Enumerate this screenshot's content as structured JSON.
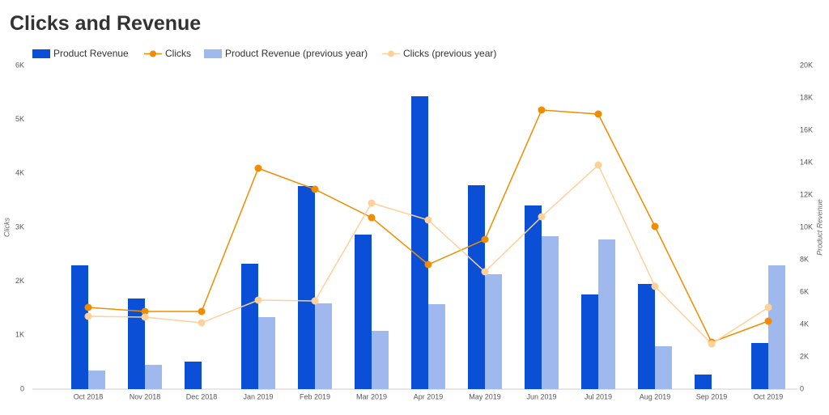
{
  "chart_data": {
    "type": "combo",
    "title": "Clicks and Revenue",
    "categories": [
      "Oct 2018",
      "Nov 2018",
      "Dec 2018",
      "Jan 2019",
      "Feb 2019",
      "Mar 2019",
      "Apr 2019",
      "May 2019",
      "Jun 2019",
      "Jul 2019",
      "Aug 2019",
      "Sep 2019",
      "Oct 2019"
    ],
    "y_label": "Clicks",
    "y2_label": "Product Revenue",
    "ylim": [
      0,
      6000
    ],
    "yticks": [
      0,
      {
        "value": 1000,
        "label": "1K"
      },
      {
        "value": 2000,
        "label": "2K"
      },
      {
        "value": 3000,
        "label": "3K"
      },
      {
        "value": 4000,
        "label": "4K"
      },
      {
        "value": 5000,
        "label": "5K"
      },
      {
        "value": 6000,
        "label": "6K"
      }
    ],
    "y2lim": [
      0,
      20000
    ],
    "y2ticks": [
      0,
      {
        "value": 2000,
        "label": "2K"
      },
      {
        "value": 4000,
        "label": "4K"
      },
      {
        "value": 6000,
        "label": "6K"
      },
      {
        "value": 8000,
        "label": "8K"
      },
      {
        "value": 10000,
        "label": "10K"
      },
      {
        "value": 12000,
        "label": "12K"
      },
      {
        "value": 14000,
        "label": "14K"
      },
      {
        "value": 16000,
        "label": "16K"
      },
      {
        "value": 18000,
        "label": "18K"
      },
      {
        "value": 20000,
        "label": "20K"
      }
    ],
    "series": [
      {
        "name": "Product Revenue",
        "type": "bar",
        "axis": "y2",
        "color": "#0b4fd6",
        "values": [
          7650,
          5600,
          1700,
          7750,
          12550,
          9550,
          18100,
          12600,
          11350,
          5850,
          6500,
          900,
          2850
        ]
      },
      {
        "name": "Clicks",
        "type": "line",
        "axis": "y",
        "color": "#f08c00",
        "values": [
          1515,
          1440,
          1440,
          4095,
          3705,
          3180,
          2310,
          2775,
          5175,
          5100,
          3015,
          870,
          1260
        ]
      },
      {
        "name": "Product Revenue (previous year)",
        "type": "bar",
        "axis": "y2",
        "color": "#9fb9ee",
        "values": [
          1150,
          1500,
          null,
          4450,
          5300,
          3600,
          5250,
          7100,
          9450,
          9250,
          2650,
          null,
          7650
        ]
      },
      {
        "name": "Clicks (previous year)",
        "type": "line",
        "axis": "y",
        "color": "#fdd199",
        "values": [
          1350,
          1335,
          1230,
          1650,
          1635,
          3450,
          3135,
          2175,
          3195,
          4155,
          1905,
          840,
          1515
        ]
      }
    ]
  }
}
